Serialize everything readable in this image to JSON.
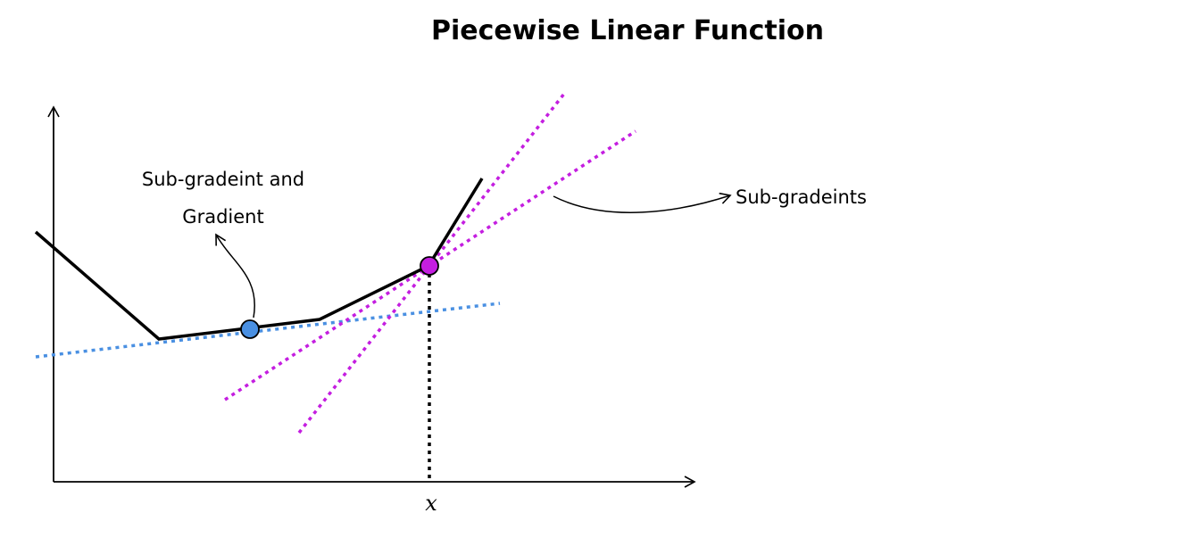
{
  "title": "Piecewise Linear Function",
  "x_axis_label": "x",
  "annotations": {
    "left_line1": "Sub-gradeint and",
    "left_line2": "Gradient",
    "right": "Sub-gradeints"
  },
  "colors": {
    "function": "#000000",
    "gradient_line": "#4a90e2",
    "subgradient_lines": "#c41ee0",
    "gradient_point": "#4a90e2",
    "kink_point": "#c41ee0"
  }
}
